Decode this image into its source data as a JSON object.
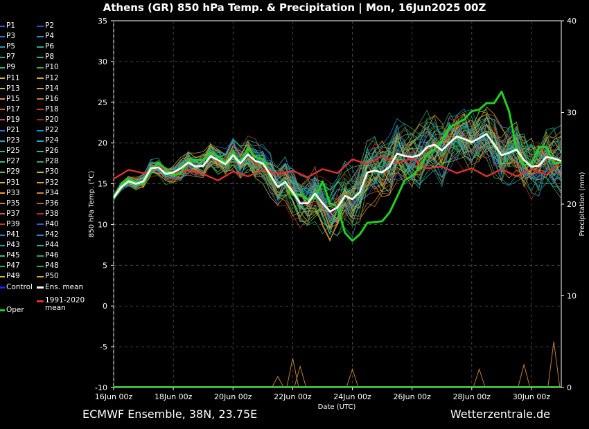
{
  "title": "Athens  (GR)  850 hPa Temp. & Precipitation | Mon, 16Jun2025 00Z",
  "footer_left": "ECMWF Ensemble, 38N, 23.75E",
  "footer_right": "Wetterzentrale.de",
  "chart_data": {
    "type": "line",
    "xlabel": "Date (UTC)",
    "ylabel": "850 hPa Temp. (°C)",
    "y2label": "Precipitation (mm)",
    "ylim": [
      -10,
      35
    ],
    "y2lim": [
      0,
      40
    ],
    "yticks": [
      -10,
      -5,
      0,
      5,
      10,
      15,
      20,
      25,
      30,
      35
    ],
    "y2ticks": [
      0,
      10,
      20,
      30,
      40
    ],
    "xlim": [
      0,
      15
    ],
    "xticks": [
      {
        "x": 0,
        "label": "16Jun 00z"
      },
      {
        "x": 2,
        "label": "18Jun 00z"
      },
      {
        "x": 4,
        "label": "20Jun 00z"
      },
      {
        "x": 6,
        "label": "22Jun 00z"
      },
      {
        "x": 8,
        "label": "24Jun 00z"
      },
      {
        "x": 10,
        "label": "26Jun 00z"
      },
      {
        "x": 12,
        "label": "28Jun 00z"
      },
      {
        "x": 14,
        "label": "30Jun 00z"
      }
    ],
    "grid": true,
    "legend_position": "left",
    "member_colors": [
      "#2a5bd7",
      "#1e90b4",
      "#2b8fa8",
      "#17a0a0",
      "#16b07a",
      "#22c46a",
      "#3aa54a",
      "#6bb83a",
      "#b6b82a",
      "#d6a52a",
      "#e09a2a",
      "#d4783a",
      "#c8642a",
      "#b84a3a",
      "#c0302a",
      "#9a2a1a",
      "#2f6dd6",
      "#1a8cd8",
      "#22a0c8",
      "#2ab0b0",
      "#20c090",
      "#28c878",
      "#30a860",
      "#d0b030",
      "#d8a028"
    ],
    "members": [
      {
        "name": "P1",
        "color": "#2a5bd7"
      },
      {
        "name": "P2",
        "color": "#2050e0"
      },
      {
        "name": "P3",
        "color": "#3b6fd6"
      },
      {
        "name": "P4",
        "color": "#2a8fd0"
      },
      {
        "name": "P5",
        "color": "#1e9fb0"
      },
      {
        "name": "P6",
        "color": "#22b090"
      },
      {
        "name": "P7",
        "color": "#18b0a0"
      },
      {
        "name": "P8",
        "color": "#1ec080"
      },
      {
        "name": "P9",
        "color": "#22c46a"
      },
      {
        "name": "P10",
        "color": "#3ab040"
      },
      {
        "name": "P11",
        "color": "#c8c040"
      },
      {
        "name": "P12",
        "color": "#d8b030"
      },
      {
        "name": "P13",
        "color": "#e0b030"
      },
      {
        "name": "P14",
        "color": "#e0a030"
      },
      {
        "name": "P15",
        "color": "#d89050"
      },
      {
        "name": "P16",
        "color": "#c87830"
      },
      {
        "name": "P17",
        "color": "#d06030"
      },
      {
        "name": "P18",
        "color": "#c04030"
      },
      {
        "name": "P19",
        "color": "#d04838"
      },
      {
        "name": "P20",
        "color": "#a02818"
      },
      {
        "name": "P21",
        "color": "#2f6dd6"
      },
      {
        "name": "P22",
        "color": "#1a8cd8"
      },
      {
        "name": "P23",
        "color": "#28a0c0"
      },
      {
        "name": "P24",
        "color": "#20a8c8"
      },
      {
        "name": "P25",
        "color": "#2ab0a8"
      },
      {
        "name": "P26",
        "color": "#20c090"
      },
      {
        "name": "P27",
        "color": "#30c080"
      },
      {
        "name": "P28",
        "color": "#28b060"
      },
      {
        "name": "P29",
        "color": "#60c040"
      },
      {
        "name": "P30",
        "color": "#c0c030"
      },
      {
        "name": "P31",
        "color": "#d8b838"
      },
      {
        "name": "P32",
        "color": "#e0a830"
      },
      {
        "name": "P33",
        "color": "#e8a028"
      },
      {
        "name": "P34",
        "color": "#d88a30"
      },
      {
        "name": "P35",
        "color": "#d07840"
      },
      {
        "name": "P36",
        "color": "#c06030"
      },
      {
        "name": "P37",
        "color": "#d05040"
      },
      {
        "name": "P38",
        "color": "#b03020"
      },
      {
        "name": "P39",
        "color": "#c83838"
      },
      {
        "name": "P40",
        "color": "#2a60d8"
      },
      {
        "name": "P41",
        "color": "#1a80c8"
      },
      {
        "name": "P42",
        "color": "#2090d0"
      },
      {
        "name": "P43",
        "color": "#20a0b0"
      },
      {
        "name": "P44",
        "color": "#20b898"
      },
      {
        "name": "P45",
        "color": "#28c080"
      },
      {
        "name": "P46",
        "color": "#20b060"
      },
      {
        "name": "P47",
        "color": "#30a858"
      },
      {
        "name": "P48",
        "color": "#28b048"
      },
      {
        "name": "P49",
        "color": "#c8b830"
      },
      {
        "name": "P50",
        "color": "#d8a828"
      },
      {
        "name": "Control",
        "color": "#1a28ff"
      },
      {
        "name": "Ens. mean",
        "color": "#ffffff"
      }
    ],
    "oper_label": "Oper",
    "oper_color": "#1ed21e",
    "clim_label": "1991-2020 mean",
    "clim_color": "#e03030",
    "mean_color": "#ffffff",
    "control_color": "#1a28ff",
    "ens_mean": {
      "x": [
        0,
        0.25,
        0.5,
        0.75,
        1,
        1.25,
        1.5,
        1.75,
        2,
        2.25,
        2.5,
        2.75,
        3,
        3.25,
        3.5,
        3.75,
        4,
        4.25,
        4.5,
        4.75,
        5,
        5.25,
        5.5,
        5.75,
        6,
        6.25,
        6.5,
        6.75,
        7,
        7.25,
        7.5,
        7.75,
        8,
        8.25,
        8.5,
        8.75,
        9,
        9.25,
        9.5,
        9.75,
        10,
        10.25,
        10.5,
        10.75,
        11,
        11.25,
        11.5,
        11.75,
        12,
        12.25,
        12.5,
        12.75,
        13,
        13.25,
        13.5,
        13.75,
        14,
        14.25,
        14.5,
        14.75,
        15
      ],
      "values": [
        13.3,
        14.6,
        15.3,
        15,
        15.3,
        16.9,
        17,
        16.2,
        16.4,
        16.9,
        17.6,
        17.1,
        17.2,
        18.4,
        17.9,
        17.4,
        18.5,
        17.5,
        18.6,
        17.8,
        17.5,
        16.1,
        14.6,
        15.2,
        14,
        12.6,
        12.6,
        13.8,
        12.6,
        11.6,
        12.1,
        13.5,
        13.1,
        14,
        16.4,
        16.6,
        16.4,
        17.1,
        18.7,
        18.4,
        18.3,
        18.5,
        19.5,
        19.8,
        19.1,
        20,
        20.8,
        20.5,
        20.1,
        20.6,
        21.1,
        19.8,
        18.5,
        18.8,
        19.2,
        17.9,
        17.1,
        17.2,
        18.3,
        18.1,
        17.8
      ]
    },
    "climatology": {
      "x": [
        0,
        0.5,
        1,
        1.5,
        2,
        2.5,
        3,
        3.5,
        4,
        4.5,
        5,
        5.5,
        6,
        6.5,
        7,
        7.5,
        8,
        8.5,
        9,
        9.5,
        10,
        10.5,
        11,
        11.5,
        12,
        12.5,
        13,
        13.5,
        14,
        14.5,
        15
      ],
      "values": [
        15.6,
        16.7,
        16.3,
        17.1,
        16.4,
        16.6,
        16.2,
        15.4,
        16.5,
        15.9,
        16.7,
        16.2,
        16.6,
        15.8,
        16.8,
        16.3,
        18,
        17.4,
        18.4,
        17.5,
        18.1,
        16.9,
        17.1,
        16.3,
        16.9,
        15.9,
        16.8,
        15.9,
        16.8,
        16.1,
        17.8
      ]
    },
    "oper": {
      "x": [
        0,
        0.25,
        0.5,
        0.75,
        1,
        1.25,
        1.5,
        1.75,
        2,
        2.25,
        2.5,
        2.75,
        3,
        3.25,
        3.5,
        3.75,
        4,
        4.25,
        4.5,
        4.75,
        5,
        5.25,
        5.5,
        5.75,
        6,
        6.25,
        6.5,
        6.75,
        7,
        7.25,
        7.5,
        7.75,
        8,
        8.25,
        8.5,
        8.75,
        9,
        9.25,
        9.5,
        9.75,
        10,
        10.25,
        10.5,
        10.75,
        11,
        11.25,
        11.5,
        11.75,
        12,
        12.25,
        12.5,
        12.75,
        13,
        13.25,
        13.5,
        13.75,
        14,
        14.25,
        14.5,
        14.75,
        15
      ],
      "values": [
        13.1,
        14.9,
        15.6,
        15.2,
        15,
        16.6,
        17.6,
        16.8,
        16,
        16.3,
        18,
        17.9,
        17.9,
        18.8,
        18.4,
        17.5,
        18.8,
        17.6,
        19.3,
        18.3,
        18,
        15.9,
        14.6,
        15.3,
        13.6,
        13.7,
        13.1,
        13.2,
        15.3,
        12.6,
        12.2,
        9,
        8,
        8.8,
        10.2,
        10.3,
        10.4,
        11.5,
        13.4,
        15.4,
        16,
        16.9,
        18.6,
        19.2,
        20.3,
        21.9,
        22.4,
        22.9,
        23.9,
        24.1,
        24.9,
        24.9,
        26.3,
        23.9,
        19.3,
        17.3,
        17.4,
        19.5,
        19.5,
        17.5,
        17.6
      ]
    },
    "precip_spikes_mm": [
      {
        "x": 5.5,
        "value": 1.2
      },
      {
        "x": 6.0,
        "value": 3.2
      },
      {
        "x": 6.25,
        "value": 2.3
      },
      {
        "x": 8.0,
        "value": 2.0
      },
      {
        "x": 12.25,
        "value": 2.0
      },
      {
        "x": 13.75,
        "value": 2.5
      },
      {
        "x": 14.75,
        "value": 5.0
      }
    ]
  }
}
